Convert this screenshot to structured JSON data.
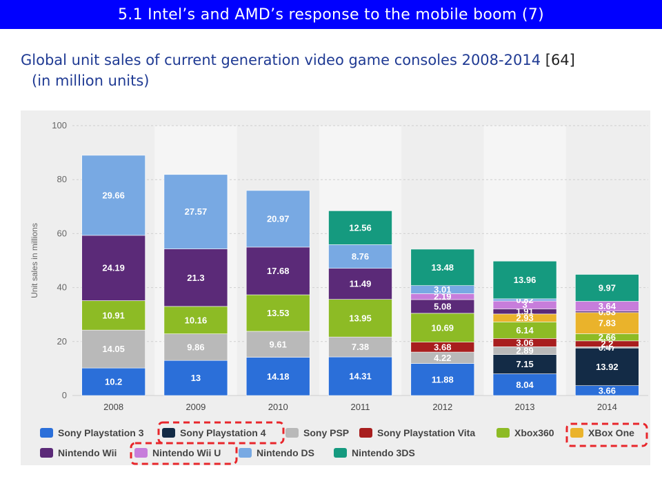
{
  "header": {
    "title": "5.1 Intel’s and AMD’s response to the mobile boom (7)"
  },
  "subtitle": {
    "line1": "Global unit sales of current generation video game consoles 2008-2014",
    "ref": "[64]",
    "line2": "(in million units)"
  },
  "chart_data": {
    "type": "bar",
    "stacked": true,
    "ylabel": "Unit sales in millions",
    "ylim": [
      0,
      100
    ],
    "yticks": [
      0,
      20,
      40,
      60,
      80,
      100
    ],
    "grid": true,
    "legend_position": "bottom",
    "categories": [
      "2008",
      "2009",
      "2010",
      "2011",
      "2012",
      "2013",
      "2014"
    ],
    "series": [
      {
        "name": "Sony Playstation 3",
        "color": "#2b6fd9",
        "values": [
          10.2,
          13,
          14.18,
          14.31,
          11.88,
          8.04,
          3.66
        ]
      },
      {
        "name": "Sony Playstation 4",
        "color": "#132b46",
        "values": [
          0,
          0,
          0,
          0,
          0,
          7.15,
          13.92
        ]
      },
      {
        "name": "Sony PSP",
        "color": "#b9b9b9",
        "values": [
          14.05,
          9.86,
          9.61,
          7.38,
          4.22,
          2.89,
          0.47
        ]
      },
      {
        "name": "Sony Playstation Vita",
        "color": "#a81e1e",
        "values": [
          0,
          0,
          0,
          0,
          3.68,
          3.06,
          2.2
        ]
      },
      {
        "name": "Xbox360",
        "color": "#8dbb25",
        "values": [
          10.91,
          10.16,
          13.53,
          13.95,
          10.69,
          6.14,
          2.66
        ]
      },
      {
        "name": "XBox One",
        "color": "#eab32b",
        "values": [
          0,
          0,
          0,
          0,
          0,
          2.93,
          7.83
        ]
      },
      {
        "name": "Nintendo Wii",
        "color": "#5b2a78",
        "values": [
          24.19,
          21.3,
          17.68,
          11.49,
          5.08,
          1.91,
          0.53
        ]
      },
      {
        "name": "Nintendo Wii U",
        "color": "#c77ddb",
        "values": [
          0,
          0,
          0,
          0,
          2.19,
          2.9,
          3.64
        ]
      },
      {
        "name": "Nintendo DS",
        "color": "#78a9e3",
        "values": [
          29.66,
          27.57,
          20.97,
          8.76,
          3.01,
          0.82,
          0
        ]
      },
      {
        "name": "Nintendo 3DS",
        "color": "#159a7f",
        "values": [
          0,
          0,
          0,
          12.56,
          13.48,
          13.96,
          9.97
        ]
      }
    ],
    "labels": [
      [
        "10.2",
        "",
        "14.05",
        "",
        "10.91",
        "",
        "24.19",
        "",
        "29.66",
        ""
      ],
      [
        "13",
        "",
        "9.86",
        "",
        "10.16",
        "",
        "21.3",
        "",
        "27.57",
        ""
      ],
      [
        "14.18",
        "",
        "9.61",
        "",
        "13.53",
        "",
        "17.68",
        "",
        "20.97",
        ""
      ],
      [
        "14.31",
        "",
        "7.38",
        "",
        "13.95",
        "",
        "11.49",
        "",
        "8.76",
        "12.56"
      ],
      [
        "11.88",
        "",
        "4.22",
        "3.68",
        "10.69",
        "",
        "5.08",
        "2.19",
        "3.01",
        "13.48"
      ],
      [
        "8.04",
        "7.15",
        "2.89",
        "3.06",
        "6.14",
        "2.93",
        "1.91",
        "3",
        "0.82",
        "13.96"
      ],
      [
        "3.66",
        "13.92",
        "0.47",
        "2.2",
        "2.66",
        "7.83",
        "0.53",
        "3.64",
        "",
        "9.97"
      ]
    ],
    "highlighted_series": [
      "Sony Playstation 4",
      "XBox One",
      "Nintendo Wii U"
    ],
    "highlight_color": "#e8262b"
  }
}
